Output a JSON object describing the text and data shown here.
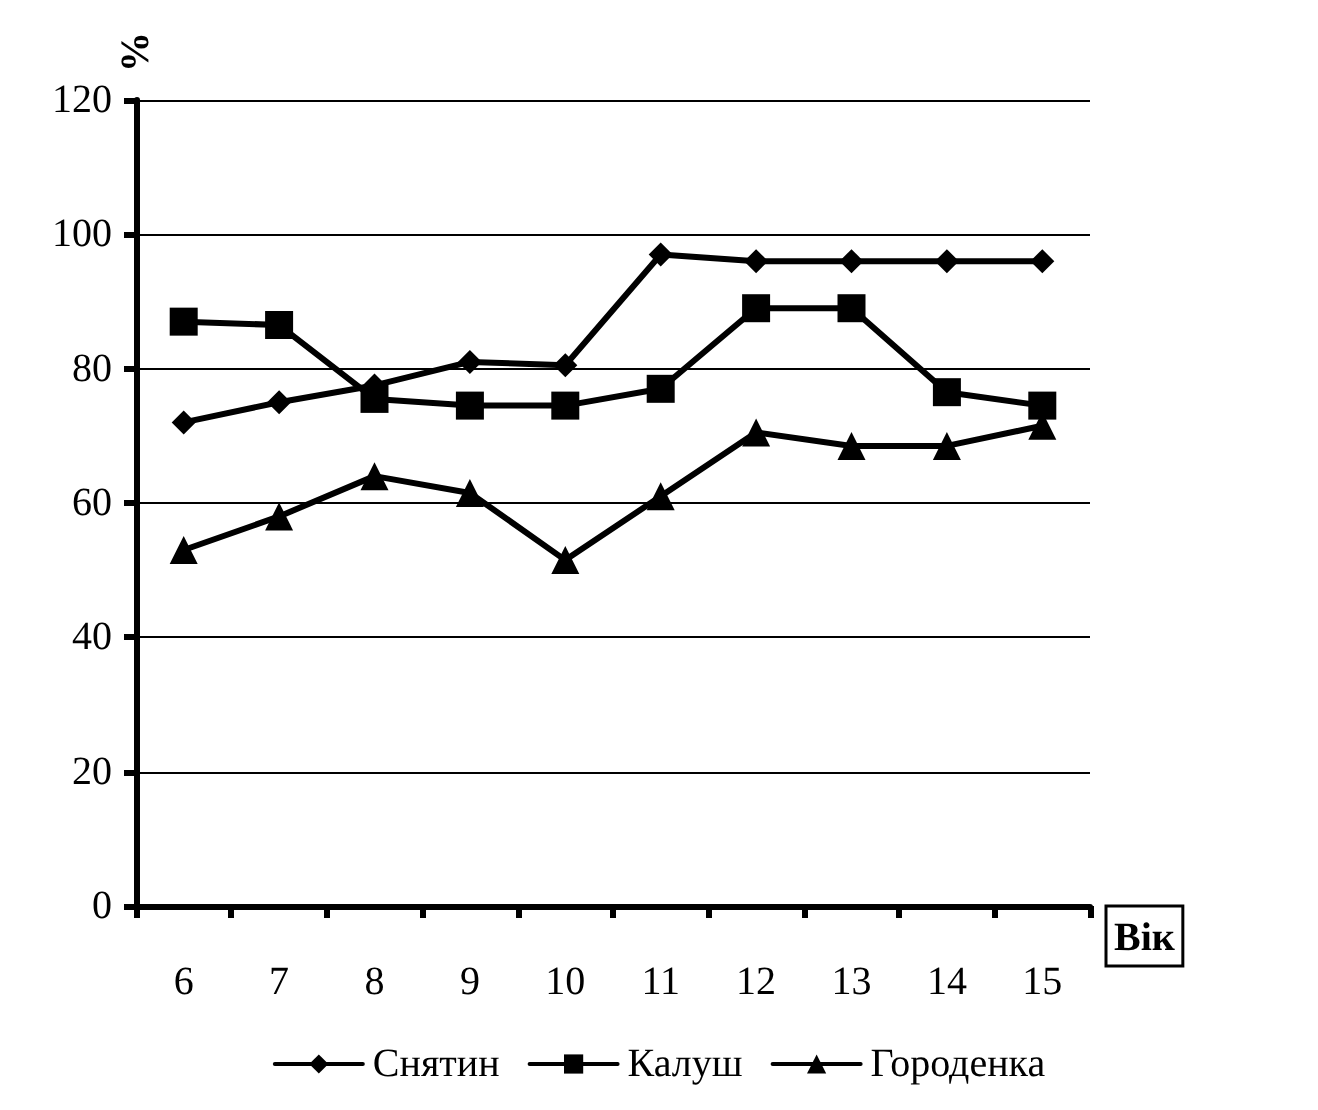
{
  "chart_data": {
    "type": "line",
    "xlabel": "Вік",
    "ylabel": "%",
    "categories": [
      "6",
      "7",
      "8",
      "9",
      "10",
      "11",
      "12",
      "13",
      "14",
      "15"
    ],
    "series": [
      {
        "name": "Снятин",
        "color": "#000000",
        "marker": "diamond",
        "values": [
          72,
          75,
          77.5,
          81,
          80.5,
          97,
          96,
          96,
          96,
          96
        ]
      },
      {
        "name": "Калуш",
        "color": "#000000",
        "marker": "square",
        "values": [
          87,
          86.5,
          75.5,
          74.5,
          74.5,
          77,
          89,
          89,
          76.5,
          74.5
        ]
      },
      {
        "name": "Городенка",
        "color": "#000000",
        "marker": "triangle",
        "values": [
          53,
          58,
          64,
          61.5,
          51.5,
          61,
          70.5,
          68.5,
          68.5,
          71.5
        ]
      }
    ],
    "ylim": [
      0,
      120
    ],
    "yticks": [
      0,
      20,
      40,
      60,
      80,
      100,
      120
    ],
    "grid": "y",
    "legend": "bottom",
    "line_style": "solid"
  }
}
